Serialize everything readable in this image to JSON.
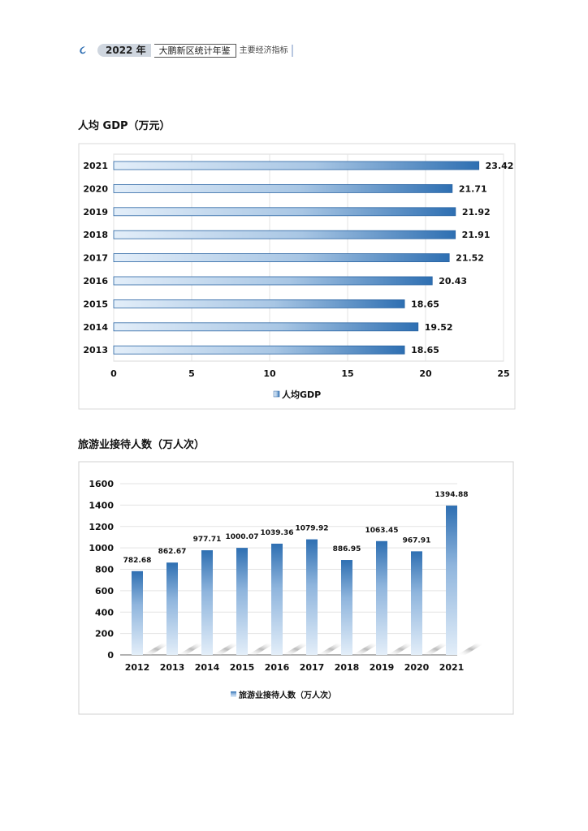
{
  "header": {
    "year": "2022",
    "year_suffix": "年",
    "book": "大鹏新区统计年鉴",
    "section": "主要经济指标",
    "logo_icon": "spiral-logo-icon"
  },
  "colors": {
    "bar_dark": "#2e6fb2",
    "bar_light": "#e3eef9"
  },
  "chart_data": [
    {
      "type": "bar",
      "orientation": "horizontal",
      "title": "人均 GDP（万元）",
      "categories": [
        "2021",
        "2020",
        "2019",
        "2018",
        "2017",
        "2016",
        "2015",
        "2014",
        "2013"
      ],
      "series": [
        {
          "name": "人均GDP",
          "values": [
            23.42,
            21.71,
            21.92,
            21.91,
            21.52,
            20.43,
            18.65,
            19.52,
            18.65
          ]
        }
      ],
      "data_labels": [
        "23.42",
        "21.71",
        "21.92",
        "21.91",
        "21.52",
        "20.43",
        "18.65",
        "19.52",
        "18.65"
      ],
      "xlim": [
        0,
        25
      ],
      "xticks": [
        "0",
        "5",
        "10",
        "15",
        "20",
        "25"
      ],
      "grid": true,
      "legend": "bottom"
    },
    {
      "type": "bar",
      "orientation": "vertical",
      "title": "旅游业接待人数（万人次）",
      "categories": [
        "2012",
        "2013",
        "2014",
        "2015",
        "2016",
        "2017",
        "2018",
        "2019",
        "2020",
        "2021"
      ],
      "series": [
        {
          "name": "旅游业接待人数（万人次）",
          "values": [
            782.68,
            862.67,
            977.71,
            1000.07,
            1039.36,
            1079.92,
            886.95,
            1063.45,
            967.91,
            1394.88
          ]
        }
      ],
      "data_labels": [
        "782.68",
        "862.67",
        "977.71",
        "1000.07",
        "1039.36",
        "1079.92",
        "886.95",
        "1063.45",
        "967.91",
        "1394.88"
      ],
      "ylim": [
        0,
        1600
      ],
      "yticks": [
        "0",
        "200",
        "400",
        "600",
        "800",
        "1000",
        "1200",
        "1400",
        "1600"
      ],
      "grid": true,
      "legend": "bottom"
    }
  ]
}
